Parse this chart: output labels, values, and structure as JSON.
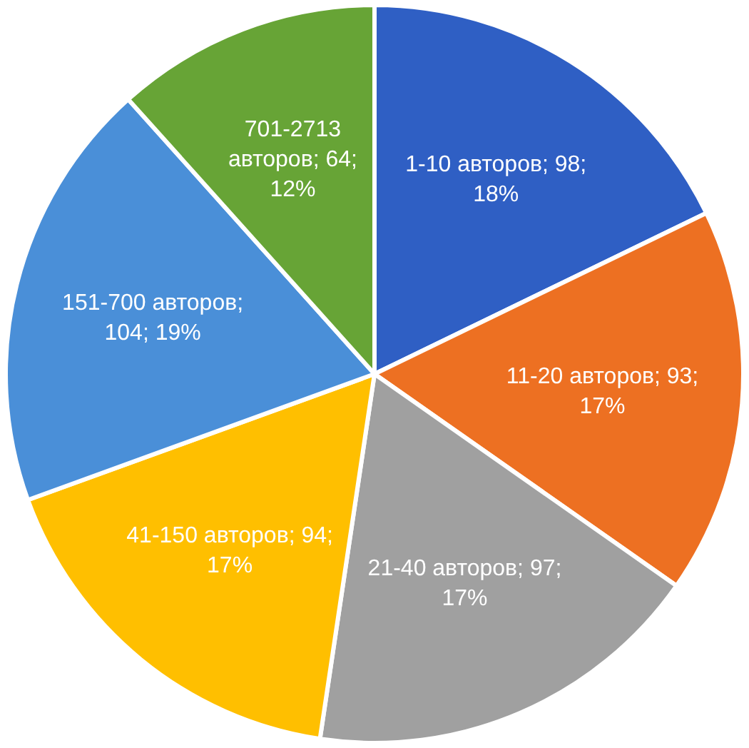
{
  "chart_data": {
    "type": "pie",
    "categories": [
      "1-10 авторов",
      "11-20 авторов",
      "21-40 авторов",
      "41-150 авторов",
      "151-700 авторов",
      "701-2713 авторов"
    ],
    "values": [
      98,
      93,
      97,
      94,
      104,
      64
    ],
    "colors": [
      "#2f5fc4",
      "#ed7022",
      "#a0a0a0",
      "#ffbf00",
      "#4a8fd8",
      "#67a436"
    ],
    "value_labels": [
      "; 98; 18%",
      "; 93; 17%",
      "; 97; 17%",
      "; 94; 17%",
      "; 104; 19%",
      "; 64; 12%"
    ],
    "legend": false
  }
}
